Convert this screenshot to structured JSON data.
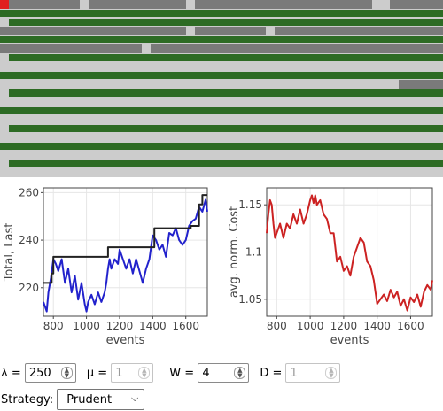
{
  "grid": {
    "colors": {
      "light": "#cccccc",
      "dark": "#7a7a7a",
      "green": "#2d6b24",
      "marker": "#e01e1e"
    },
    "rows": [
      {
        "type": "gray",
        "whites": [
          90,
          210,
          420,
          430
        ],
        "marker": true
      },
      {
        "type": "green",
        "indent": 0
      },
      {
        "type": "green",
        "indent": 10
      },
      {
        "type": "gray",
        "whites": [
          210,
          300
        ]
      },
      {
        "type": "green",
        "indent": 0
      },
      {
        "type": "gray",
        "whites": [
          160
        ]
      },
      {
        "type": "green",
        "indent": 10
      },
      {
        "type": "light"
      },
      {
        "type": "green",
        "indent": 0
      },
      {
        "type": "light",
        "darkFrom": 450
      },
      {
        "type": "green",
        "indent": 10
      },
      {
        "type": "light"
      },
      {
        "type": "green",
        "indent": 0
      },
      {
        "type": "light"
      },
      {
        "type": "green",
        "indent": 10
      },
      {
        "type": "light"
      },
      {
        "type": "green",
        "indent": 0
      },
      {
        "type": "light"
      },
      {
        "type": "green",
        "indent": 10
      },
      {
        "type": "light"
      }
    ]
  },
  "chart_data": [
    {
      "type": "line",
      "xlabel": "events",
      "ylabel": "Total, Last",
      "xlim": [
        740,
        1730
      ],
      "ylim": [
        208,
        262
      ],
      "xticks": [
        800,
        1000,
        1200,
        1400,
        1600
      ],
      "yticks": [
        220,
        240,
        260
      ],
      "grid": true,
      "series": [
        {
          "color": "#2222cc",
          "x": [
            740,
            760,
            770,
            785,
            800,
            815,
            830,
            850,
            870,
            890,
            910,
            930,
            950,
            970,
            990,
            1000,
            1010,
            1030,
            1050,
            1070,
            1090,
            1110,
            1120,
            1130,
            1140,
            1150,
            1170,
            1190,
            1200,
            1220,
            1240,
            1260,
            1280,
            1300,
            1320,
            1340,
            1360,
            1380,
            1400,
            1420,
            1440,
            1460,
            1480,
            1500,
            1520,
            1540,
            1560,
            1580,
            1600,
            1620,
            1640,
            1660,
            1680,
            1700,
            1720,
            1730
          ],
          "y": [
            214,
            210,
            218,
            224,
            232,
            230,
            227,
            232,
            222,
            228,
            218,
            225,
            215,
            222,
            213,
            210,
            214,
            217,
            213,
            218,
            214,
            218,
            222,
            228,
            232,
            228,
            232,
            230,
            236,
            232,
            228,
            232,
            226,
            232,
            227,
            222,
            228,
            232,
            242,
            240,
            236,
            238,
            233,
            243,
            242,
            245,
            240,
            238,
            240,
            246,
            248,
            249,
            254,
            252,
            257,
            252
          ]
        },
        {
          "color": "#222222",
          "step": true,
          "x": [
            740,
            780,
            790,
            800,
            1000,
            1110,
            1130,
            1250,
            1290,
            1410,
            1580,
            1610,
            1630,
            1680,
            1700,
            1730
          ],
          "y": [
            222,
            222,
            226,
            233,
            233,
            233,
            237,
            237,
            237,
            245,
            245,
            245,
            246,
            255,
            259,
            259
          ]
        }
      ]
    },
    {
      "type": "line",
      "xlabel": "events",
      "ylabel": "avg. norm. Cost",
      "xlim": [
        740,
        1730
      ],
      "ylim": [
        1.032,
        1.168
      ],
      "xticks": [
        800,
        1000,
        1200,
        1400,
        1600
      ],
      "yticks": [
        1.05,
        1.1,
        1.15
      ],
      "ytickLabels": [
        "1.05",
        "1.1",
        "1.15"
      ],
      "grid": true,
      "series": [
        {
          "color": "#cc2222",
          "x": [
            740,
            750,
            760,
            770,
            780,
            790,
            800,
            820,
            840,
            860,
            880,
            900,
            920,
            940,
            960,
            980,
            1000,
            1010,
            1020,
            1030,
            1040,
            1060,
            1080,
            1100,
            1120,
            1140,
            1160,
            1180,
            1200,
            1220,
            1240,
            1260,
            1280,
            1300,
            1320,
            1340,
            1360,
            1380,
            1400,
            1420,
            1440,
            1460,
            1480,
            1500,
            1520,
            1540,
            1560,
            1580,
            1600,
            1620,
            1640,
            1660,
            1680,
            1700,
            1720,
            1730
          ],
          "y": [
            1.12,
            1.14,
            1.155,
            1.15,
            1.13,
            1.115,
            1.12,
            1.13,
            1.115,
            1.13,
            1.125,
            1.14,
            1.13,
            1.145,
            1.13,
            1.14,
            1.155,
            1.16,
            1.152,
            1.16,
            1.15,
            1.155,
            1.14,
            1.135,
            1.12,
            1.12,
            1.09,
            1.095,
            1.08,
            1.085,
            1.075,
            1.095,
            1.105,
            1.115,
            1.11,
            1.09,
            1.085,
            1.07,
            1.045,
            1.05,
            1.055,
            1.048,
            1.06,
            1.052,
            1.058,
            1.043,
            1.05,
            1.038,
            1.052,
            1.047,
            1.055,
            1.042,
            1.058,
            1.065,
            1.06,
            1.07
          ]
        }
      ]
    }
  ],
  "controls": {
    "lambda": {
      "label": "λ = ",
      "value": "250"
    },
    "mu": {
      "label": "μ = ",
      "value": "1"
    },
    "w": {
      "label": "W = ",
      "value": "4"
    },
    "d": {
      "label": "D = ",
      "value": "1"
    },
    "strategy": {
      "label": "Strategy: ",
      "value": "Prudent"
    }
  }
}
